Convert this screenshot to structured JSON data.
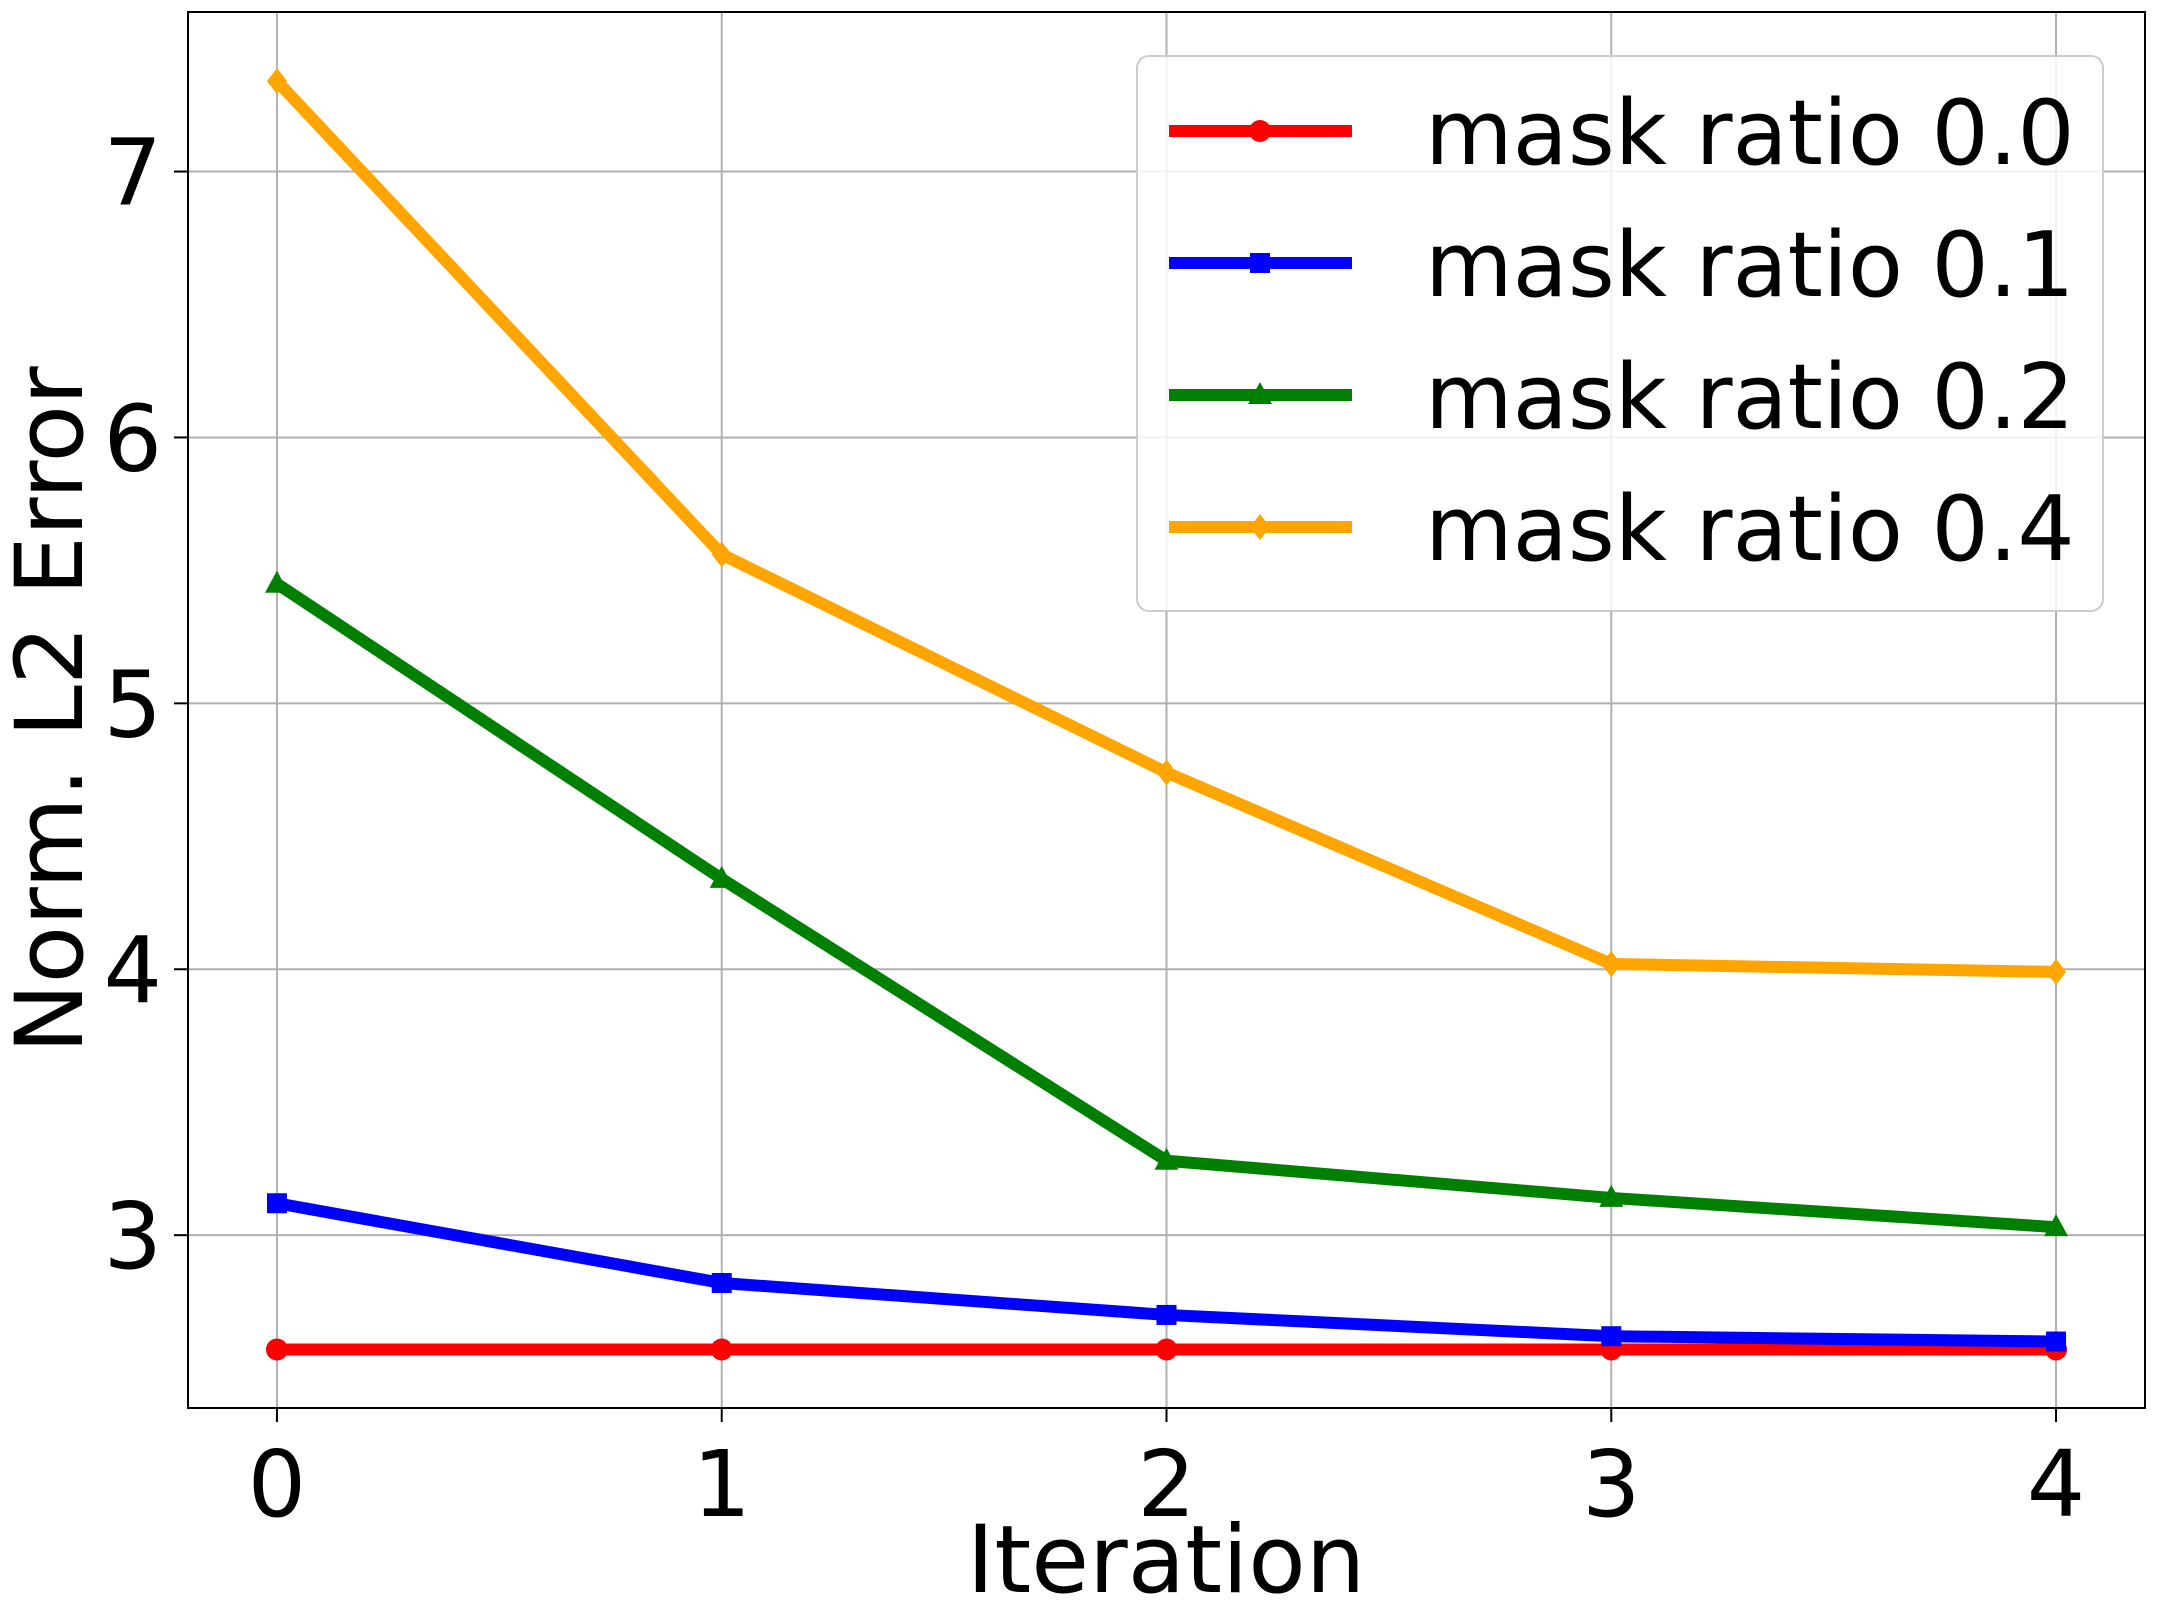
{
  "chart_data": {
    "type": "line",
    "xlabel": "Iteration",
    "ylabel": "Norm. L2 Error",
    "x": [
      0,
      1,
      2,
      3,
      4
    ],
    "xlim": [
      -0.2,
      4.2
    ],
    "ylim": [
      2.35,
      7.6
    ],
    "xticks": [
      "0",
      "1",
      "2",
      "3",
      "4"
    ],
    "yticks": [
      "3",
      "4",
      "5",
      "6",
      "7"
    ],
    "grid": true,
    "legend_position": "top-right",
    "series": [
      {
        "name": "mask ratio 0.0",
        "color": "#ff0000",
        "marker": "circle",
        "values": [
          2.57,
          2.57,
          2.57,
          2.57,
          2.57
        ]
      },
      {
        "name": "mask ratio 0.1",
        "color": "#0000ff",
        "marker": "square",
        "values": [
          3.12,
          2.82,
          2.7,
          2.62,
          2.6
        ]
      },
      {
        "name": "mask ratio 0.2",
        "color": "#008000",
        "marker": "triangle",
        "values": [
          5.45,
          4.34,
          3.28,
          3.14,
          3.03
        ]
      },
      {
        "name": "mask ratio 0.4",
        "color": "#ffa500",
        "marker": "diamond",
        "values": [
          7.34,
          5.56,
          4.74,
          4.02,
          3.99
        ]
      }
    ]
  }
}
